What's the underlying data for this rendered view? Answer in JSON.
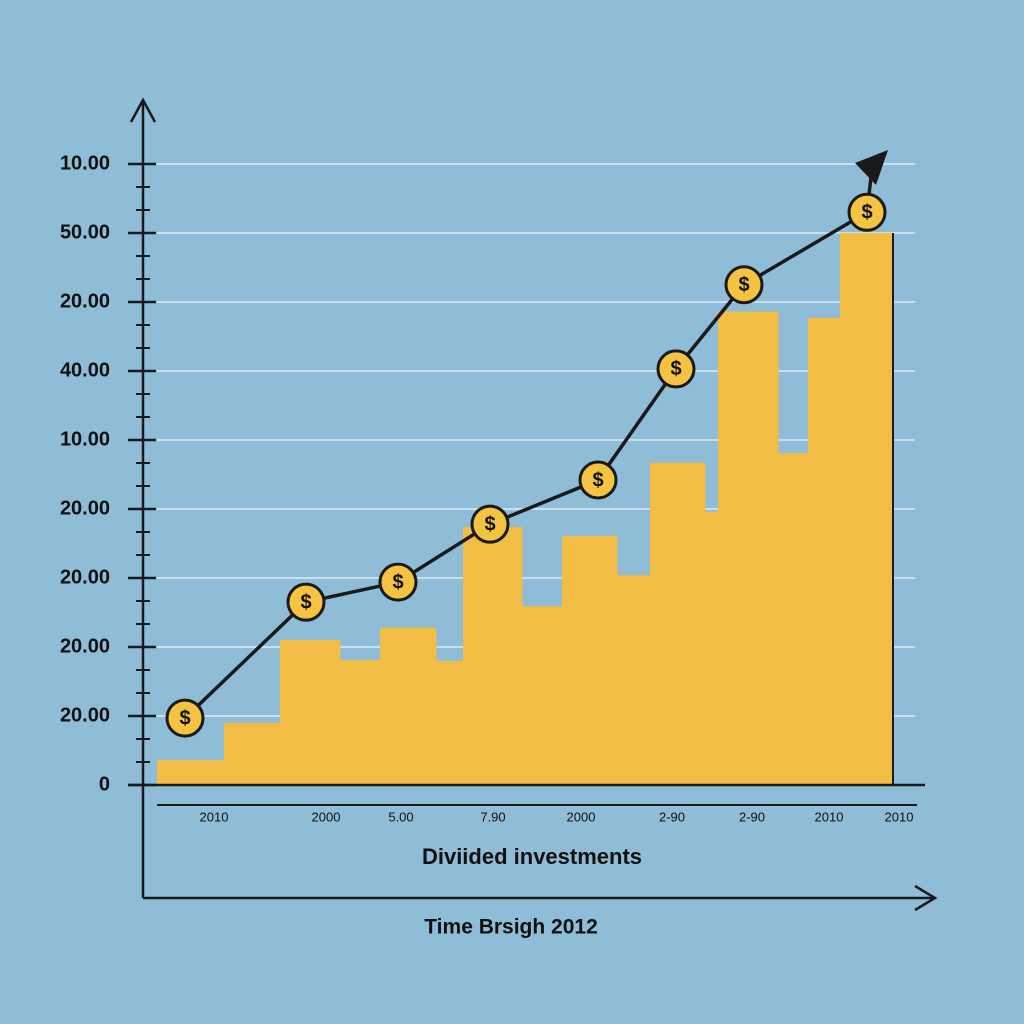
{
  "chart_data": {
    "type": "histogram",
    "title": "Diviided investments",
    "xlabel": "Time Brsigh 2012",
    "xlim": [
      0,
      76
    ],
    "ylim": [
      0,
      9
    ],
    "grid": true,
    "color": "#f2bd45",
    "yticks": [
      0,
      {
        "value": 1,
        "label": "20.00"
      },
      {
        "value": 2,
        "label": "20.00"
      },
      {
        "value": 3,
        "label": "20.00"
      },
      {
        "value": 4,
        "label": "20.00"
      },
      {
        "value": 5,
        "label": "10.00"
      },
      {
        "value": 6,
        "label": "40.00"
      },
      {
        "value": 7,
        "label": "20.00"
      },
      {
        "value": 8,
        "label": "50.00"
      },
      {
        "value": 9,
        "label": "10.00"
      }
    ],
    "xticks": [
      {
        "value": 5.7,
        "label": "2010"
      },
      {
        "value": 16.9,
        "label": "2000"
      },
      {
        "value": 24.4,
        "label": "5.00"
      },
      {
        "value": 33.6,
        "label": "7.90"
      },
      {
        "value": 42.4,
        "label": "2000"
      },
      {
        "value": 51.5,
        "label": "2-90"
      },
      {
        "value": 59.5,
        "label": "2-90"
      },
      {
        "value": 67.2,
        "label": "2010"
      },
      {
        "value": 74.2,
        "label": "2010"
      }
    ],
    "bins": [
      0,
      6.7,
      12.3,
      18.3,
      22.3,
      27.9,
      30.6,
      36.5,
      40.5,
      46,
      49.3,
      54.8,
      56.1,
      62.1,
      65.1,
      68.3,
      73.6
    ],
    "counts": [
      0.36,
      0.9,
      2.1,
      1.81,
      2.28,
      1.8,
      3.74,
      2.59,
      3.61,
      3.04,
      4.67,
      3.96,
      6.86,
      4.81,
      6.77,
      8.0
    ],
    "series": [
      {
        "type": "line",
        "color": "#1a1a1a",
        "marker_color": "#f5c342",
        "marker_symbol": "$",
        "x": [
          2.8,
          14.9,
          24.1,
          33.3,
          44.1,
          51.9,
          58.7,
          71.0
        ],
        "values": [
          0.97,
          2.65,
          2.94,
          3.78,
          4.42,
          6.03,
          7.25,
          8.3
        ]
      }
    ]
  }
}
